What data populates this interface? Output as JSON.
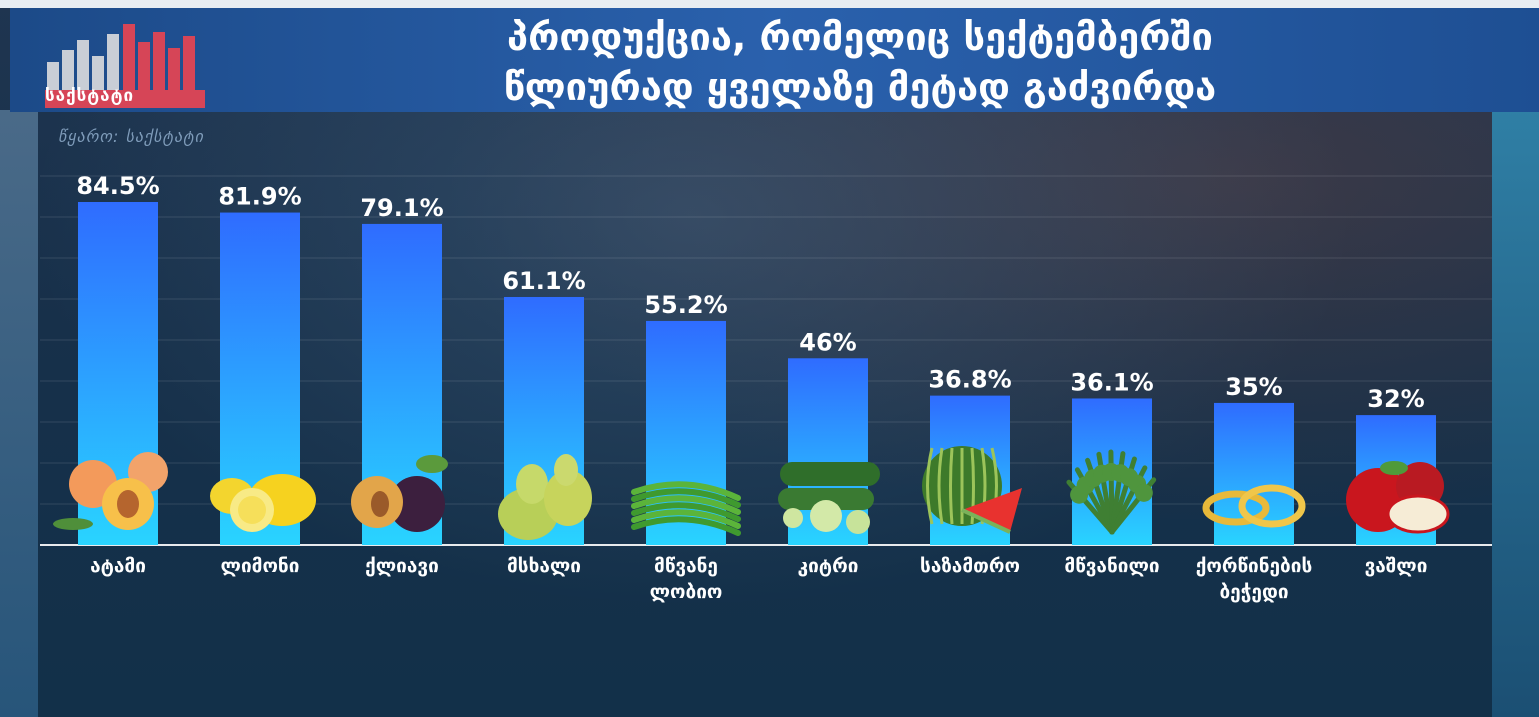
{
  "header": {
    "logo_text": "საქსტატი",
    "title_line1": "პროდუქცია, რომელიც სექტემბერში",
    "title_line2": "წლიურად ყველაზე მეტად გაძვირდა",
    "source": "წყარო: საქსტატი"
  },
  "colors": {
    "bar_top": "#2f6cff",
    "bar_bottom": "#29d4ff",
    "header_bg": "#2a5fab",
    "label_text": "#ffffff"
  },
  "chart_data": {
    "type": "bar",
    "categories": [
      "ატამი",
      "ლიმონი",
      "ქლიავი",
      "მსხალი",
      "მწვანე ლობიო",
      "კიტრი",
      "საზამთრო",
      "მწვანილი",
      "ქორწინების ბეჭედი",
      "ვაშლი"
    ],
    "category_lines": [
      [
        "ატამი"
      ],
      [
        "ლიმონი"
      ],
      [
        "ქლიავი"
      ],
      [
        "მსხალი"
      ],
      [
        "მწვანე",
        "ლობიო"
      ],
      [
        "კიტრი"
      ],
      [
        "საზამთრო"
      ],
      [
        "მწვანილი"
      ],
      [
        "ქორწინების",
        "ბეჭედი"
      ],
      [
        "ვაშლი"
      ]
    ],
    "values": [
      84.5,
      81.9,
      79.1,
      61.1,
      55.2,
      46,
      36.8,
      36.1,
      35,
      32
    ],
    "value_labels": [
      "84.5%",
      "81.9%",
      "79.1%",
      "61.1%",
      "55.2%",
      "46%",
      "36.8%",
      "36.1%",
      "35%",
      "32%"
    ],
    "icons": [
      "peach-icon",
      "lemon-icon",
      "plum-icon",
      "pear-icon",
      "green-bean-icon",
      "cucumber-icon",
      "watermelon-icon",
      "herbs-icon",
      "wedding-ring-icon",
      "apple-icon"
    ],
    "ylim": [
      0,
      90
    ],
    "grid": true,
    "title": "პროდუქცია, რომელიც სექტემბერში წლიურად ყველაზე მეტად გაძვირდა",
    "xlabel": "",
    "ylabel": ""
  }
}
